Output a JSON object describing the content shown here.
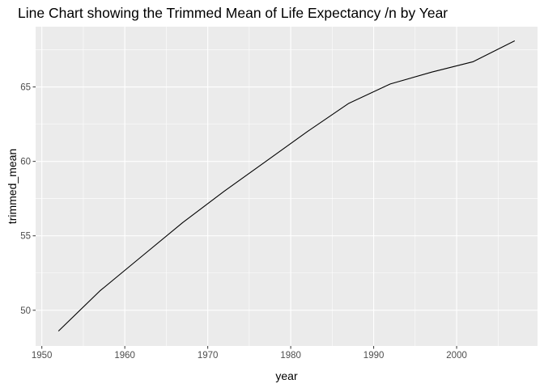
{
  "chart_data": {
    "type": "line",
    "title": "Line Chart showing the Trimmed Mean of Life Expectancy /n by Year",
    "xlabel": "year",
    "ylabel": "trimmed_mean",
    "xlim": [
      1949.25,
      2009.75
    ],
    "ylim": [
      47.6,
      69.05
    ],
    "x_ticks": [
      1950,
      1960,
      1970,
      1980,
      1990,
      2000
    ],
    "x_tick_labels": [
      "1950",
      "1960",
      "1970",
      "1980",
      "1990",
      "2000"
    ],
    "y_ticks": [
      50,
      55,
      60,
      65
    ],
    "y_tick_labels": [
      "50",
      "55",
      "60",
      "65"
    ],
    "grid": true,
    "legend": "none",
    "series": [
      {
        "x": [
          1952,
          1957,
          1962,
          1967,
          1972,
          1977,
          1982,
          1987,
          1992,
          1997,
          2002,
          2007
        ],
        "y": [
          48.6,
          51.3,
          53.6,
          55.9,
          58.0,
          60.0,
          62.0,
          63.9,
          65.2,
          66.0,
          66.7,
          68.1
        ]
      }
    ],
    "colors": {
      "panel_background": "#ebebeb",
      "grid_major": "#ffffff",
      "line": "#000000",
      "tick_label": "#4d4d4d"
    }
  }
}
